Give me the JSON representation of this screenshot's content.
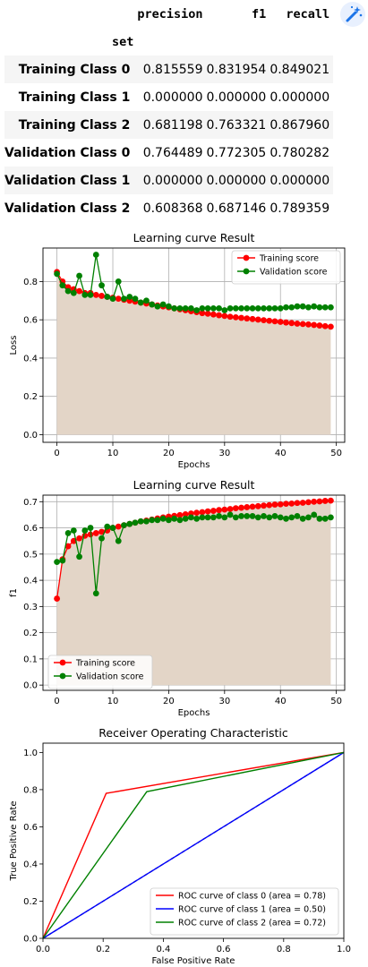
{
  "table": {
    "columns": [
      "precision",
      "f1",
      "recall"
    ],
    "index_name": "set",
    "rows": [
      {
        "label": "Training Class 0",
        "values": [
          "0.815559",
          "0.831954",
          "0.849021"
        ]
      },
      {
        "label": "Training Class 1",
        "values": [
          "0.000000",
          "0.000000",
          "0.000000"
        ]
      },
      {
        "label": "Training Class 2",
        "values": [
          "0.681198",
          "0.763321",
          "0.867960"
        ]
      },
      {
        "label": "Validation Class 0",
        "values": [
          "0.764489",
          "0.772305",
          "0.780282"
        ]
      },
      {
        "label": "Validation Class 1",
        "values": [
          "0.000000",
          "0.000000",
          "0.000000"
        ]
      },
      {
        "label": "Validation Class 2",
        "values": [
          "0.608368",
          "0.687146",
          "0.789359"
        ]
      }
    ]
  },
  "toolbar": {
    "icon": "magic-wand-icon"
  },
  "chart_data": [
    {
      "type": "line",
      "title": "Learning curve Result",
      "xlabel": "Epochs",
      "ylabel": "Loss",
      "xlim": [
        -2.5,
        51.5
      ],
      "ylim": [
        -0.04,
        0.975
      ],
      "xticks": [
        0,
        10,
        20,
        30,
        40,
        50
      ],
      "yticks": [
        0.0,
        0.2,
        0.4,
        0.6,
        0.8
      ],
      "grid": true,
      "legend_position": "top-right",
      "fill_under": "Training score",
      "fill_color": "#e3d5c7",
      "series": [
        {
          "name": "Training score",
          "color": "#ff0000",
          "x": [
            0,
            1,
            2,
            3,
            4,
            5,
            6,
            7,
            8,
            9,
            10,
            11,
            12,
            13,
            14,
            15,
            16,
            17,
            18,
            19,
            20,
            21,
            22,
            23,
            24,
            25,
            26,
            27,
            28,
            29,
            30,
            31,
            32,
            33,
            34,
            35,
            36,
            37,
            38,
            39,
            40,
            41,
            42,
            43,
            44,
            45,
            46,
            47,
            48,
            49
          ],
          "y": [
            0.85,
            0.8,
            0.77,
            0.76,
            0.75,
            0.74,
            0.74,
            0.73,
            0.725,
            0.72,
            0.715,
            0.71,
            0.705,
            0.7,
            0.695,
            0.69,
            0.685,
            0.68,
            0.675,
            0.67,
            0.665,
            0.66,
            0.655,
            0.65,
            0.645,
            0.64,
            0.635,
            0.632,
            0.628,
            0.624,
            0.62,
            0.616,
            0.613,
            0.61,
            0.607,
            0.604,
            0.601,
            0.598,
            0.595,
            0.592,
            0.589,
            0.586,
            0.583,
            0.58,
            0.578,
            0.576,
            0.573,
            0.57,
            0.567,
            0.564
          ]
        },
        {
          "name": "Validation score",
          "color": "#008000",
          "x": [
            0,
            1,
            2,
            3,
            4,
            5,
            6,
            7,
            8,
            9,
            10,
            11,
            12,
            13,
            14,
            15,
            16,
            17,
            18,
            19,
            20,
            21,
            22,
            23,
            24,
            25,
            26,
            27,
            28,
            29,
            30,
            31,
            32,
            33,
            34,
            35,
            36,
            37,
            38,
            39,
            40,
            41,
            42,
            43,
            44,
            45,
            46,
            47,
            48,
            49
          ],
          "y": [
            0.84,
            0.78,
            0.75,
            0.74,
            0.83,
            0.73,
            0.73,
            0.94,
            0.78,
            0.72,
            0.71,
            0.8,
            0.71,
            0.72,
            0.71,
            0.69,
            0.7,
            0.68,
            0.67,
            0.68,
            0.67,
            0.66,
            0.66,
            0.66,
            0.66,
            0.65,
            0.66,
            0.66,
            0.66,
            0.66,
            0.65,
            0.66,
            0.66,
            0.66,
            0.66,
            0.66,
            0.66,
            0.66,
            0.66,
            0.66,
            0.66,
            0.665,
            0.665,
            0.67,
            0.67,
            0.665,
            0.67,
            0.665,
            0.665,
            0.665
          ]
        }
      ]
    },
    {
      "type": "line",
      "title": "Learning curve Result",
      "xlabel": "Epochs",
      "ylabel": "f1",
      "xlim": [
        -2.5,
        51.5
      ],
      "ylim": [
        -0.02,
        0.725
      ],
      "xticks": [
        0,
        10,
        20,
        30,
        40,
        50
      ],
      "yticks": [
        0.0,
        0.1,
        0.2,
        0.3,
        0.4,
        0.5,
        0.6,
        0.7
      ],
      "grid": true,
      "legend_position": "lower-left",
      "fill_under": "Training score",
      "fill_color": "#e3d5c7",
      "series": [
        {
          "name": "Training score",
          "color": "#ff0000",
          "x": [
            0,
            1,
            2,
            3,
            4,
            5,
            6,
            7,
            8,
            9,
            10,
            11,
            12,
            13,
            14,
            15,
            16,
            17,
            18,
            19,
            20,
            21,
            22,
            23,
            24,
            25,
            26,
            27,
            28,
            29,
            30,
            31,
            32,
            33,
            34,
            35,
            36,
            37,
            38,
            39,
            40,
            41,
            42,
            43,
            44,
            45,
            46,
            47,
            48,
            49
          ],
          "y": [
            0.33,
            0.48,
            0.53,
            0.55,
            0.56,
            0.57,
            0.575,
            0.58,
            0.585,
            0.59,
            0.6,
            0.605,
            0.61,
            0.615,
            0.62,
            0.625,
            0.628,
            0.632,
            0.636,
            0.64,
            0.643,
            0.646,
            0.649,
            0.652,
            0.655,
            0.658,
            0.66,
            0.663,
            0.665,
            0.668,
            0.67,
            0.672,
            0.675,
            0.677,
            0.679,
            0.681,
            0.683,
            0.685,
            0.687,
            0.689,
            0.69,
            0.692,
            0.693,
            0.695,
            0.696,
            0.698,
            0.7,
            0.701,
            0.703,
            0.704
          ]
        },
        {
          "name": "Validation score",
          "color": "#008000",
          "x": [
            0,
            1,
            2,
            3,
            4,
            5,
            6,
            7,
            8,
            9,
            10,
            11,
            12,
            13,
            14,
            15,
            16,
            17,
            18,
            19,
            20,
            21,
            22,
            23,
            24,
            25,
            26,
            27,
            28,
            29,
            30,
            31,
            32,
            33,
            34,
            35,
            36,
            37,
            38,
            39,
            40,
            41,
            42,
            43,
            44,
            45,
            46,
            47,
            48,
            49
          ],
          "y": [
            0.47,
            0.475,
            0.58,
            0.59,
            0.49,
            0.59,
            0.6,
            0.35,
            0.56,
            0.605,
            0.6,
            0.55,
            0.61,
            0.615,
            0.62,
            0.625,
            0.625,
            0.63,
            0.63,
            0.635,
            0.63,
            0.635,
            0.63,
            0.635,
            0.64,
            0.635,
            0.64,
            0.64,
            0.64,
            0.645,
            0.64,
            0.65,
            0.64,
            0.645,
            0.645,
            0.645,
            0.64,
            0.645,
            0.64,
            0.645,
            0.64,
            0.635,
            0.64,
            0.645,
            0.635,
            0.64,
            0.65,
            0.635,
            0.635,
            0.64
          ]
        }
      ]
    },
    {
      "type": "line",
      "title": "Receiver Operating Characteristic",
      "xlabel": "False Positive Rate",
      "ylabel": "True Positive Rate",
      "xlim": [
        0.0,
        1.0
      ],
      "ylim": [
        0.0,
        1.05
      ],
      "xticks": [
        0.0,
        0.2,
        0.4,
        0.6,
        0.8,
        1.0
      ],
      "yticks": [
        0.0,
        0.2,
        0.4,
        0.6,
        0.8,
        1.0
      ],
      "grid": false,
      "legend_position": "lower-right",
      "diagonal": {
        "color": "#000000",
        "dash": true
      },
      "series": [
        {
          "name": "ROC curve of class 0 (area = 0.78)",
          "color": "#ff0000",
          "x": [
            0.0,
            0.21,
            1.0
          ],
          "y": [
            0.0,
            0.78,
            1.0
          ]
        },
        {
          "name": "ROC curve of class 1 (area = 0.50)",
          "color": "#0000ff",
          "x": [
            0.0,
            1.0
          ],
          "y": [
            0.0,
            1.0
          ]
        },
        {
          "name": "ROC curve of class 2 (area = 0.72)",
          "color": "#008000",
          "x": [
            0.0,
            0.345,
            1.0
          ],
          "y": [
            0.0,
            0.789,
            1.0
          ]
        }
      ]
    }
  ]
}
